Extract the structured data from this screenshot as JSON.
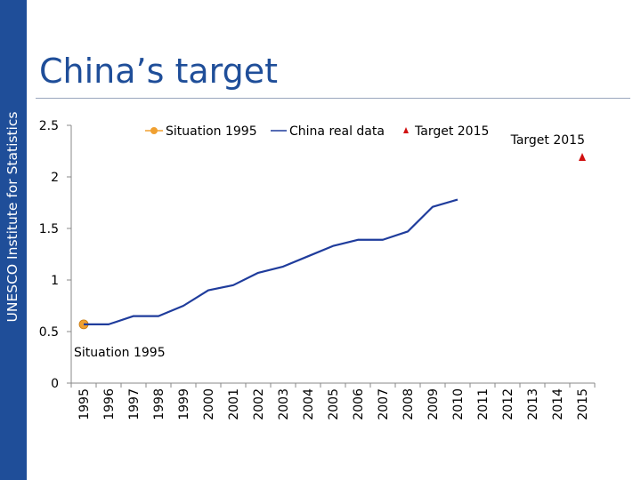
{
  "page": {
    "title": "China’s target",
    "sidebar_label": "UNESCO Institute for Statistics"
  },
  "colors": {
    "brand": "#1f4e99",
    "series_line": "#1f3c9c",
    "situation_marker": "#f0a030",
    "target_marker": "#d01010"
  },
  "chart_data": {
    "type": "line",
    "x": [
      1995,
      1996,
      1997,
      1998,
      1999,
      2000,
      2001,
      2002,
      2003,
      2004,
      2005,
      2006,
      2007,
      2008,
      2009,
      2010,
      2011,
      2012,
      2013,
      2014,
      2015
    ],
    "x_tick_labels": [
      "1995",
      "1996",
      "1997",
      "1998",
      "1999",
      "2000",
      "2001",
      "2002",
      "2003",
      "2004",
      "2005",
      "2006",
      "2007",
      "2008",
      "2009",
      "2010",
      "2011",
      "2012",
      "2013",
      "2014",
      "2015"
    ],
    "y_tick_labels": [
      "0",
      "0.5",
      "1",
      "1.5",
      "2",
      "2.5"
    ],
    "ylim": [
      0,
      2.5
    ],
    "grid": false,
    "legend_position": "top",
    "series": [
      {
        "name": "Situation 1995",
        "marker": "circle",
        "x": [
          1995
        ],
        "values": [
          0.57
        ],
        "annotation": "Situation 1995"
      },
      {
        "name": "China real data",
        "marker": "none",
        "x": [
          1995,
          1996,
          1997,
          1998,
          1999,
          2000,
          2001,
          2002,
          2003,
          2004,
          2005,
          2006,
          2007,
          2008,
          2009,
          2010
        ],
        "values": [
          0.57,
          0.57,
          0.65,
          0.65,
          0.75,
          0.9,
          0.95,
          1.07,
          1.13,
          1.23,
          1.33,
          1.39,
          1.39,
          1.47,
          1.71,
          1.78
        ]
      },
      {
        "name": "Target 2015",
        "marker": "triangle",
        "x": [
          2015
        ],
        "values": [
          2.19
        ],
        "annotation": "Target 2015"
      }
    ]
  }
}
